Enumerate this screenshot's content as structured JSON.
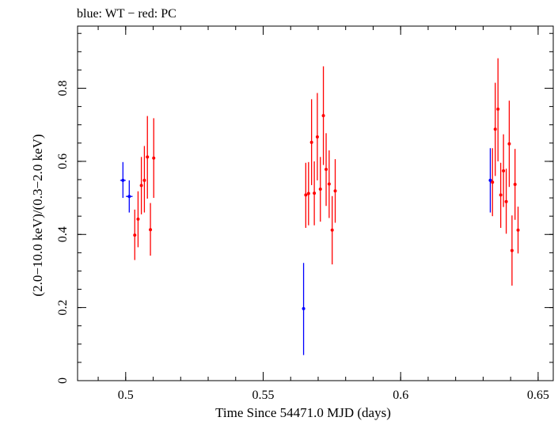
{
  "chart_data": {
    "type": "scatter",
    "title": "blue: WT − red: PC",
    "xlabel": "Time Since 54471.0 MJD (days)",
    "ylabel": "(2.0−10.0 keV)/(0.3−2.0 keV)",
    "xlim": [
      0.4825,
      0.6555
    ],
    "ylim": [
      0,
      0.97
    ],
    "x_ticks": [
      {
        "value": 0.5,
        "label": "0.5"
      },
      {
        "value": 0.55,
        "label": "0.55"
      },
      {
        "value": 0.6,
        "label": "0.6"
      },
      {
        "value": 0.65,
        "label": "0.65"
      }
    ],
    "y_ticks": [
      {
        "value": 0,
        "label": "0"
      },
      {
        "value": 0.2,
        "label": "0.2"
      },
      {
        "value": 0.4,
        "label": "0.4"
      },
      {
        "value": 0.6,
        "label": "0.6"
      },
      {
        "value": 0.8,
        "label": "0.8"
      }
    ],
    "x_minor_step": 0.01,
    "y_minor_step": 0.05,
    "grid": false,
    "legend": "none",
    "series": [
      {
        "color": "#0000ff",
        "points": [
          {
            "x": 0.499,
            "y": 0.548,
            "ylo": 0.5,
            "yhi": 0.598,
            "xerr": 0.001
          },
          {
            "x": 0.5013,
            "y": 0.504,
            "ylo": 0.46,
            "yhi": 0.548,
            "xerr": 0.0012
          },
          {
            "x": 0.5647,
            "y": 0.197,
            "ylo": 0.07,
            "yhi": 0.322,
            "xerr": 0.0
          },
          {
            "x": 0.6326,
            "y": 0.548,
            "ylo": 0.46,
            "yhi": 0.636,
            "xerr": 0.0
          }
        ]
      },
      {
        "color": "#ff0000",
        "points": [
          {
            "x": 0.5033,
            "y": 0.398,
            "ylo": 0.33,
            "yhi": 0.468
          },
          {
            "x": 0.5045,
            "y": 0.442,
            "ylo": 0.365,
            "yhi": 0.518
          },
          {
            "x": 0.5057,
            "y": 0.534,
            "ylo": 0.455,
            "yhi": 0.612
          },
          {
            "x": 0.5068,
            "y": 0.548,
            "ylo": 0.46,
            "yhi": 0.642
          },
          {
            "x": 0.5079,
            "y": 0.612,
            "ylo": 0.498,
            "yhi": 0.724
          },
          {
            "x": 0.509,
            "y": 0.413,
            "ylo": 0.342,
            "yhi": 0.486
          },
          {
            "x": 0.5102,
            "y": 0.609,
            "ylo": 0.5,
            "yhi": 0.718
          },
          {
            "x": 0.5655,
            "y": 0.508,
            "ylo": 0.418,
            "yhi": 0.596
          },
          {
            "x": 0.5665,
            "y": 0.512,
            "ylo": 0.425,
            "yhi": 0.598
          },
          {
            "x": 0.5676,
            "y": 0.652,
            "ylo": 0.535,
            "yhi": 0.77
          },
          {
            "x": 0.5686,
            "y": 0.513,
            "ylo": 0.425,
            "yhi": 0.6
          },
          {
            "x": 0.5697,
            "y": 0.667,
            "ylo": 0.548,
            "yhi": 0.787
          },
          {
            "x": 0.5708,
            "y": 0.524,
            "ylo": 0.435,
            "yhi": 0.612
          },
          {
            "x": 0.5719,
            "y": 0.725,
            "ylo": 0.59,
            "yhi": 0.86
          },
          {
            "x": 0.5729,
            "y": 0.578,
            "ylo": 0.478,
            "yhi": 0.677
          },
          {
            "x": 0.574,
            "y": 0.538,
            "ylo": 0.445,
            "yhi": 0.63
          },
          {
            "x": 0.5751,
            "y": 0.412,
            "ylo": 0.318,
            "yhi": 0.505
          },
          {
            "x": 0.5762,
            "y": 0.519,
            "ylo": 0.432,
            "yhi": 0.606
          },
          {
            "x": 0.6334,
            "y": 0.543,
            "ylo": 0.45,
            "yhi": 0.636
          },
          {
            "x": 0.6344,
            "y": 0.688,
            "ylo": 0.56,
            "yhi": 0.815
          },
          {
            "x": 0.6354,
            "y": 0.743,
            "ylo": 0.6,
            "yhi": 0.882
          },
          {
            "x": 0.6364,
            "y": 0.508,
            "ylo": 0.418,
            "yhi": 0.596
          },
          {
            "x": 0.6374,
            "y": 0.574,
            "ylo": 0.475,
            "yhi": 0.674
          },
          {
            "x": 0.6384,
            "y": 0.49,
            "ylo": 0.402,
            "yhi": 0.58
          },
          {
            "x": 0.6395,
            "y": 0.648,
            "ylo": 0.53,
            "yhi": 0.766
          },
          {
            "x": 0.6405,
            "y": 0.356,
            "ylo": 0.26,
            "yhi": 0.452
          },
          {
            "x": 0.6416,
            "y": 0.537,
            "ylo": 0.44,
            "yhi": 0.634
          },
          {
            "x": 0.6427,
            "y": 0.412,
            "ylo": 0.348,
            "yhi": 0.476
          }
        ]
      }
    ]
  }
}
